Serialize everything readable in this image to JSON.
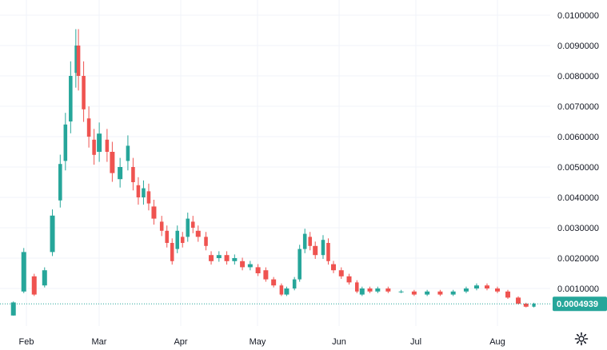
{
  "chart_data": {
    "type": "candlestick",
    "title": "",
    "xlabel": "",
    "ylabel": "",
    "y_ticks": [
      "0.0100000",
      "0.0090000",
      "0.0080000",
      "0.0070000",
      "0.0060000",
      "0.0050000",
      "0.0040000",
      "0.0030000",
      "0.0020000",
      "0.0010000"
    ],
    "y_tick_values": [
      0.01,
      0.009,
      0.008,
      0.007,
      0.006,
      0.005,
      0.004,
      0.003,
      0.002,
      0.001
    ],
    "x_ticks": [
      "Feb",
      "Mar",
      "Apr",
      "May",
      "Jun",
      "Jul",
      "Aug"
    ],
    "ylim": [
      -0.0002,
      0.0104
    ],
    "grid": true,
    "last_price": "0.0004939",
    "last_price_value": 0.0004939,
    "colors": {
      "up": "#26a69a",
      "down": "#ef5350",
      "grid": "#f0f3fa",
      "last_price_bg": "#26a69a",
      "axis_text": "#131722"
    },
    "series": [
      {
        "x": "Jan 27",
        "values": [
          0.00011,
          0.00054
        ]
      },
      {
        "x": "Jan 31",
        "values": [
          0.0009,
          0.0022
        ]
      },
      {
        "x": "Feb 4",
        "values": [
          0.0014,
          0.0008
        ]
      },
      {
        "x": "Feb 8",
        "values": [
          0.0011,
          0.0016
        ]
      },
      {
        "x": "Feb 11",
        "values": [
          0.0022,
          0.0034
        ]
      },
      {
        "x": "Feb 14",
        "values": [
          0.0039,
          0.0051
        ]
      },
      {
        "x": "Feb 16",
        "values": [
          0.0052,
          0.0064
        ]
      },
      {
        "x": "Feb 18",
        "values": [
          0.0065,
          0.008
        ]
      },
      {
        "x": "Feb 20",
        "values": [
          0.0081,
          0.009
        ]
      },
      {
        "x": "Feb 21",
        "values": [
          0.009,
          0.008
        ]
      },
      {
        "x": "Feb 23",
        "values": [
          0.008,
          0.0069
        ]
      },
      {
        "x": "Feb 25",
        "values": [
          0.0066,
          0.006
        ]
      },
      {
        "x": "Feb 27",
        "values": [
          0.0059,
          0.0054
        ]
      },
      {
        "x": "Mar 1",
        "values": [
          0.0055,
          0.0061
        ]
      },
      {
        "x": "Mar 4",
        "values": [
          0.0059,
          0.0055
        ]
      },
      {
        "x": "Mar 6",
        "values": [
          0.0055,
          0.0048
        ]
      },
      {
        "x": "Mar 9",
        "values": [
          0.0046,
          0.005
        ]
      },
      {
        "x": "Mar 12",
        "values": [
          0.0052,
          0.0057
        ]
      },
      {
        "x": "Mar 14",
        "values": [
          0.005,
          0.0045
        ]
      },
      {
        "x": "Mar 16",
        "values": [
          0.0044,
          0.004
        ]
      },
      {
        "x": "Mar 18",
        "values": [
          0.004,
          0.0043
        ]
      },
      {
        "x": "Mar 20",
        "values": [
          0.0042,
          0.0038
        ]
      },
      {
        "x": "Mar 22",
        "values": [
          0.0037,
          0.0033
        ]
      },
      {
        "x": "Mar 25",
        "values": [
          0.0032,
          0.0029
        ]
      },
      {
        "x": "Mar 27",
        "values": [
          0.0029,
          0.0025
        ]
      },
      {
        "x": "Mar 29",
        "values": [
          0.0025,
          0.0019
        ]
      },
      {
        "x": "Mar 31",
        "values": [
          0.0023,
          0.0029
        ]
      },
      {
        "x": "Apr 2",
        "values": [
          0.0027,
          0.0025
        ]
      },
      {
        "x": "Apr 4",
        "values": [
          0.0027,
          0.0033
        ]
      },
      {
        "x": "Apr 6",
        "values": [
          0.0032,
          0.003
        ]
      },
      {
        "x": "Apr 8",
        "values": [
          0.0029,
          0.0027
        ]
      },
      {
        "x": "Apr 11",
        "values": [
          0.0027,
          0.0024
        ]
      },
      {
        "x": "Apr 13",
        "values": [
          0.0021,
          0.0019
        ]
      },
      {
        "x": "Apr 16",
        "values": [
          0.002,
          0.0021
        ]
      },
      {
        "x": "Apr 19",
        "values": [
          0.0021,
          0.0019
        ]
      },
      {
        "x": "Apr 22",
        "values": [
          0.0019,
          0.002
        ]
      },
      {
        "x": "Apr 25",
        "values": [
          0.0019,
          0.0017
        ]
      },
      {
        "x": "Apr 28",
        "values": [
          0.0017,
          0.0018
        ]
      },
      {
        "x": "May 1",
        "values": [
          0.0017,
          0.0015
        ]
      },
      {
        "x": "May 4",
        "values": [
          0.0016,
          0.0013
        ]
      },
      {
        "x": "May 7",
        "values": [
          0.0013,
          0.0011
        ]
      },
      {
        "x": "May 10",
        "values": [
          0.0011,
          0.0008
        ]
      },
      {
        "x": "May 12",
        "values": [
          0.0008,
          0.001
        ]
      },
      {
        "x": "May 15",
        "values": [
          0.001,
          0.0013
        ]
      },
      {
        "x": "May 17",
        "values": [
          0.0013,
          0.0023
        ]
      },
      {
        "x": "May 19",
        "values": [
          0.0023,
          0.0028
        ]
      },
      {
        "x": "May 21",
        "values": [
          0.0027,
          0.0024
        ]
      },
      {
        "x": "May 23",
        "values": [
          0.0024,
          0.0021
        ]
      },
      {
        "x": "May 26",
        "values": [
          0.0021,
          0.0026
        ]
      },
      {
        "x": "May 28",
        "values": [
          0.0025,
          0.0019
        ]
      },
      {
        "x": "May 30",
        "values": [
          0.0018,
          0.0016
        ]
      },
      {
        "x": "Jun 2",
        "values": [
          0.0016,
          0.0014
        ]
      },
      {
        "x": "Jun 5",
        "values": [
          0.0014,
          0.0012
        ]
      },
      {
        "x": "Jun 8",
        "values": [
          0.0012,
          0.0009
        ]
      },
      {
        "x": "Jun 10",
        "values": [
          0.0008,
          0.001
        ]
      },
      {
        "x": "Jun 13",
        "values": [
          0.001,
          0.0009
        ]
      },
      {
        "x": "Jun 16",
        "values": [
          0.0009,
          0.001
        ]
      },
      {
        "x": "Jun 20",
        "values": [
          0.001,
          0.0009
        ]
      },
      {
        "x": "Jun 25",
        "values": [
          0.0009,
          0.0009
        ]
      },
      {
        "x": "Jun 30",
        "values": [
          0.0009,
          0.0008
        ]
      },
      {
        "x": "Jul 5",
        "values": [
          0.0008,
          0.0009
        ]
      },
      {
        "x": "Jul 10",
        "values": [
          0.0009,
          0.0008
        ]
      },
      {
        "x": "Jul 15",
        "values": [
          0.0008,
          0.0009
        ]
      },
      {
        "x": "Jul 20",
        "values": [
          0.0009,
          0.001
        ]
      },
      {
        "x": "Jul 24",
        "values": [
          0.001,
          0.0011
        ]
      },
      {
        "x": "Jul 28",
        "values": [
          0.0011,
          0.001
        ]
      },
      {
        "x": "Aug 1",
        "values": [
          0.001,
          0.0009
        ]
      },
      {
        "x": "Aug 5",
        "values": [
          0.0009,
          0.0007
        ]
      },
      {
        "x": "Aug 9",
        "values": [
          0.0007,
          0.0005
        ]
      },
      {
        "x": "Aug 12",
        "values": [
          0.0005,
          0.0004
        ]
      },
      {
        "x": "Aug 15",
        "values": [
          0.0004,
          0.0005
        ]
      }
    ]
  },
  "ui": {
    "settings_icon": "gear-icon"
  }
}
